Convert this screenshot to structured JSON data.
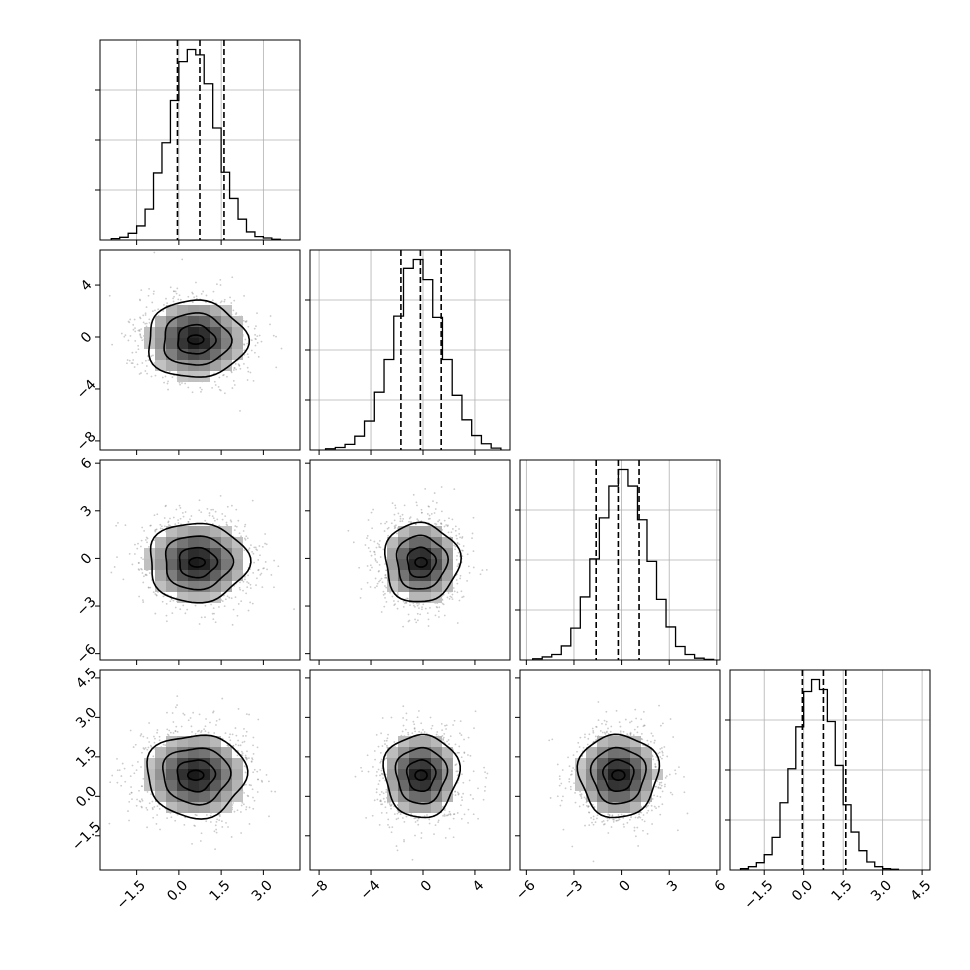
{
  "chart_data": {
    "type": "corner",
    "title": "",
    "grid": true,
    "variables": [
      {
        "name": "",
        "range": [
          -2.8,
          4.3
        ],
        "x_ticks": [
          "-1.5",
          "0.0",
          "1.5",
          "3.0"
        ],
        "x_tick_values": [
          -1.5,
          0.0,
          1.5,
          3.0
        ],
        "y_ticks": [],
        "y_tick_values": [],
        "quantiles": [
          -0.05,
          0.75,
          1.6
        ],
        "hist_start": -2.4,
        "hist_step": 0.3,
        "hist_counts": [
          2,
          4,
          10,
          21,
          46,
          100,
          145,
          208,
          266,
          284,
          276,
          233,
          167,
          101,
          62,
          31,
          12,
          5,
          3,
          1
        ]
      },
      {
        "name": "",
        "range": [
          -8.7,
          6.7
        ],
        "x_ticks": [
          "-8",
          "-4",
          "0",
          "4"
        ],
        "x_tick_values": [
          -8,
          -4,
          0,
          4
        ],
        "y_ticks": [
          "4",
          "0",
          "-4",
          "-8"
        ],
        "y_tick_values": [
          4,
          0,
          -4,
          -8
        ],
        "quantiles": [
          -1.7,
          -0.2,
          1.4
        ],
        "hist_start": -7.5,
        "hist_step": 0.75,
        "hist_counts": [
          2,
          4,
          9,
          22,
          46,
          92,
          144,
          213,
          289,
          303,
          271,
          211,
          144,
          87,
          48,
          23,
          10,
          3
        ]
      },
      {
        "name": "",
        "range": [
          -6.4,
          6.2
        ],
        "x_ticks": [
          "-6",
          "-3",
          "0",
          "3",
          "6"
        ],
        "x_tick_values": [
          -6,
          -3,
          0,
          3,
          6
        ],
        "y_ticks": [
          "6",
          "3",
          "0",
          "-3",
          "-6"
        ],
        "y_tick_values": [
          6,
          3,
          0,
          -3,
          -6
        ],
        "quantiles": [
          -1.6,
          -0.2,
          1.1
        ],
        "hist_start": -5.6,
        "hist_step": 0.6,
        "hist_counts": [
          2,
          5,
          9,
          23,
          52,
          103,
          165,
          232,
          284,
          311,
          284,
          229,
          161,
          99,
          54,
          22,
          9,
          3,
          1
        ]
      },
      {
        "name": "",
        "range": [
          -2.8,
          4.8
        ],
        "x_ticks": [
          "-1.5",
          "0.0",
          "1.5",
          "3.0",
          "4.5"
        ],
        "x_tick_values": [
          -1.5,
          0.0,
          1.5,
          3.0,
          4.5
        ],
        "y_ticks": [
          "4.5",
          "3.0",
          "1.5",
          "0.0",
          "-1.5"
        ],
        "y_tick_values": [
          4.5,
          3.0,
          1.5,
          0.0,
          -1.5
        ],
        "quantiles": [
          -0.05,
          0.75,
          1.6
        ],
        "hist_start": -2.4,
        "hist_step": 0.3,
        "hist_counts": [
          2,
          5,
          11,
          23,
          49,
          101,
          152,
          215,
          268,
          286,
          271,
          223,
          157,
          98,
          57,
          29,
          12,
          5,
          2,
          1
        ]
      }
    ],
    "pairs": [
      {
        "row": 1,
        "col": 0,
        "center": [
          0.6,
          -0.2
        ],
        "sigma": [
          0.95,
          1.6
        ]
      },
      {
        "row": 2,
        "col": 0,
        "center": [
          0.65,
          -0.25
        ],
        "sigma": [
          0.95,
          1.35
        ]
      },
      {
        "row": 2,
        "col": 1,
        "center": [
          -0.15,
          -0.25
        ],
        "sigma": [
          1.55,
          1.35
        ]
      },
      {
        "row": 3,
        "col": 0,
        "center": [
          0.6,
          0.8
        ],
        "sigma": [
          0.95,
          0.85
        ]
      },
      {
        "row": 3,
        "col": 1,
        "center": [
          -0.15,
          0.8
        ],
        "sigma": [
          1.55,
          0.85
        ]
      },
      {
        "row": 3,
        "col": 2,
        "center": [
          -0.2,
          0.8
        ],
        "sigma": [
          1.35,
          0.85
        ]
      }
    ],
    "contour_levels_sigma": [
      0.7,
      1.25,
      1.85
    ],
    "colors": {
      "line": "#000000",
      "grid": "#b0b0b0",
      "points": "#8c8c8c",
      "quantile": "#000000"
    }
  }
}
